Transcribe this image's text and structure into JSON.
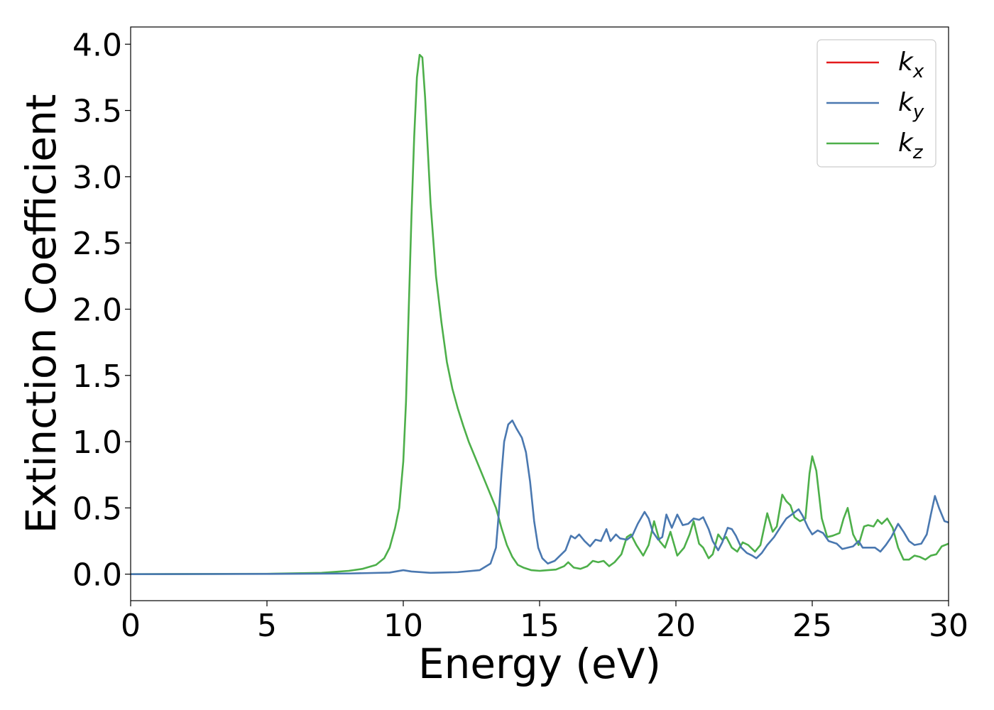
{
  "chart_data": {
    "type": "line",
    "title": "",
    "xlabel": "Energy (eV)",
    "ylabel": "Extinction Coefficient",
    "xlim": [
      0,
      30
    ],
    "ylim": [
      -0.2,
      4.13
    ],
    "xticks": [
      0,
      5,
      10,
      15,
      20,
      25,
      30
    ],
    "xtick_labels": [
      "0",
      "5",
      "10",
      "15",
      "20",
      "25",
      "30"
    ],
    "yticks": [
      0.0,
      0.5,
      1.0,
      1.5,
      2.0,
      2.5,
      3.0,
      3.5,
      4.0
    ],
    "ytick_labels": [
      "0.0",
      "0.5",
      "1.0",
      "1.5",
      "2.0",
      "2.5",
      "3.0",
      "3.5",
      "4.0"
    ],
    "grid": false,
    "legend_position": "top-right",
    "series": [
      {
        "name": "k",
        "subscript": "x",
        "color": "#e41a1c",
        "points": []
      },
      {
        "name": "k",
        "subscript": "y",
        "color": "#4a78b0",
        "points": [
          [
            0,
            0
          ],
          [
            5,
            0.002
          ],
          [
            8,
            0.005
          ],
          [
            9.5,
            0.012
          ],
          [
            10.0,
            0.03
          ],
          [
            10.3,
            0.02
          ],
          [
            11,
            0.01
          ],
          [
            12,
            0.015
          ],
          [
            12.8,
            0.03
          ],
          [
            13.2,
            0.08
          ],
          [
            13.4,
            0.2
          ],
          [
            13.5,
            0.45
          ],
          [
            13.6,
            0.75
          ],
          [
            13.7,
            1.0
          ],
          [
            13.85,
            1.13
          ],
          [
            14.0,
            1.16
          ],
          [
            14.15,
            1.1
          ],
          [
            14.35,
            1.03
          ],
          [
            14.5,
            0.92
          ],
          [
            14.65,
            0.7
          ],
          [
            14.8,
            0.4
          ],
          [
            14.95,
            0.2
          ],
          [
            15.1,
            0.12
          ],
          [
            15.3,
            0.08
          ],
          [
            15.55,
            0.1
          ],
          [
            15.8,
            0.15
          ],
          [
            15.95,
            0.18
          ],
          [
            16.15,
            0.29
          ],
          [
            16.3,
            0.27
          ],
          [
            16.45,
            0.3
          ],
          [
            16.65,
            0.25
          ],
          [
            16.85,
            0.21
          ],
          [
            17.05,
            0.26
          ],
          [
            17.25,
            0.25
          ],
          [
            17.45,
            0.34
          ],
          [
            17.6,
            0.25
          ],
          [
            17.8,
            0.3
          ],
          [
            17.95,
            0.27
          ],
          [
            18.2,
            0.26
          ],
          [
            18.4,
            0.29
          ],
          [
            18.6,
            0.38
          ],
          [
            18.85,
            0.47
          ],
          [
            19.0,
            0.42
          ],
          [
            19.15,
            0.32
          ],
          [
            19.35,
            0.26
          ],
          [
            19.5,
            0.28
          ],
          [
            19.65,
            0.45
          ],
          [
            19.85,
            0.35
          ],
          [
            20.05,
            0.45
          ],
          [
            20.25,
            0.37
          ],
          [
            20.45,
            0.38
          ],
          [
            20.65,
            0.42
          ],
          [
            20.85,
            0.41
          ],
          [
            21.0,
            0.43
          ],
          [
            21.2,
            0.34
          ],
          [
            21.35,
            0.25
          ],
          [
            21.55,
            0.18
          ],
          [
            21.7,
            0.24
          ],
          [
            21.9,
            0.35
          ],
          [
            22.05,
            0.34
          ],
          [
            22.2,
            0.29
          ],
          [
            22.4,
            0.2
          ],
          [
            22.6,
            0.16
          ],
          [
            22.8,
            0.14
          ],
          [
            22.95,
            0.12
          ],
          [
            23.15,
            0.16
          ],
          [
            23.35,
            0.22
          ],
          [
            23.6,
            0.28
          ],
          [
            23.85,
            0.36
          ],
          [
            24.05,
            0.42
          ],
          [
            24.25,
            0.45
          ],
          [
            24.5,
            0.49
          ],
          [
            24.65,
            0.44
          ],
          [
            24.85,
            0.35
          ],
          [
            25.0,
            0.3
          ],
          [
            25.2,
            0.33
          ],
          [
            25.4,
            0.31
          ],
          [
            25.6,
            0.25
          ],
          [
            25.9,
            0.23
          ],
          [
            26.1,
            0.19
          ],
          [
            26.3,
            0.2
          ],
          [
            26.5,
            0.21
          ],
          [
            26.7,
            0.25
          ],
          [
            26.85,
            0.2
          ],
          [
            27.05,
            0.2
          ],
          [
            27.3,
            0.2
          ],
          [
            27.5,
            0.17
          ],
          [
            27.7,
            0.22
          ],
          [
            27.9,
            0.28
          ],
          [
            28.15,
            0.38
          ],
          [
            28.35,
            0.32
          ],
          [
            28.55,
            0.25
          ],
          [
            28.75,
            0.22
          ],
          [
            29.0,
            0.23
          ],
          [
            29.2,
            0.3
          ],
          [
            29.35,
            0.45
          ],
          [
            29.5,
            0.59
          ],
          [
            29.65,
            0.5
          ],
          [
            29.85,
            0.4
          ],
          [
            30.0,
            0.39
          ]
        ]
      },
      {
        "name": "k",
        "subscript": "z",
        "color": "#4daf4a",
        "points": [
          [
            0,
            0
          ],
          [
            5,
            0.003
          ],
          [
            7,
            0.01
          ],
          [
            8,
            0.025
          ],
          [
            8.5,
            0.04
          ],
          [
            9.0,
            0.07
          ],
          [
            9.3,
            0.12
          ],
          [
            9.5,
            0.2
          ],
          [
            9.7,
            0.35
          ],
          [
            9.85,
            0.5
          ],
          [
            10.0,
            0.85
          ],
          [
            10.1,
            1.3
          ],
          [
            10.2,
            2.0
          ],
          [
            10.3,
            2.7
          ],
          [
            10.4,
            3.3
          ],
          [
            10.5,
            3.75
          ],
          [
            10.6,
            3.92
          ],
          [
            10.7,
            3.9
          ],
          [
            10.8,
            3.6
          ],
          [
            10.9,
            3.2
          ],
          [
            11.0,
            2.8
          ],
          [
            11.2,
            2.25
          ],
          [
            11.4,
            1.9
          ],
          [
            11.6,
            1.6
          ],
          [
            11.8,
            1.4
          ],
          [
            12.0,
            1.25
          ],
          [
            12.2,
            1.12
          ],
          [
            12.4,
            1.0
          ],
          [
            12.6,
            0.9
          ],
          [
            12.8,
            0.8
          ],
          [
            13.0,
            0.7
          ],
          [
            13.2,
            0.6
          ],
          [
            13.4,
            0.5
          ],
          [
            13.6,
            0.35
          ],
          [
            13.8,
            0.22
          ],
          [
            14.0,
            0.13
          ],
          [
            14.2,
            0.07
          ],
          [
            14.4,
            0.05
          ],
          [
            14.7,
            0.03
          ],
          [
            15.0,
            0.025
          ],
          [
            15.3,
            0.03
          ],
          [
            15.6,
            0.035
          ],
          [
            15.9,
            0.06
          ],
          [
            16.05,
            0.09
          ],
          [
            16.25,
            0.05
          ],
          [
            16.5,
            0.04
          ],
          [
            16.75,
            0.06
          ],
          [
            16.95,
            0.1
          ],
          [
            17.15,
            0.09
          ],
          [
            17.35,
            0.1
          ],
          [
            17.55,
            0.06
          ],
          [
            17.75,
            0.09
          ],
          [
            18.0,
            0.15
          ],
          [
            18.2,
            0.28
          ],
          [
            18.35,
            0.3
          ],
          [
            18.55,
            0.22
          ],
          [
            18.8,
            0.14
          ],
          [
            19.0,
            0.22
          ],
          [
            19.2,
            0.4
          ],
          [
            19.4,
            0.25
          ],
          [
            19.6,
            0.2
          ],
          [
            19.8,
            0.32
          ],
          [
            20.05,
            0.14
          ],
          [
            20.3,
            0.2
          ],
          [
            20.5,
            0.3
          ],
          [
            20.65,
            0.4
          ],
          [
            20.85,
            0.23
          ],
          [
            21.0,
            0.2
          ],
          [
            21.2,
            0.12
          ],
          [
            21.35,
            0.15
          ],
          [
            21.55,
            0.3
          ],
          [
            21.7,
            0.26
          ],
          [
            21.85,
            0.28
          ],
          [
            22.05,
            0.2
          ],
          [
            22.25,
            0.17
          ],
          [
            22.45,
            0.24
          ],
          [
            22.65,
            0.22
          ],
          [
            22.9,
            0.17
          ],
          [
            23.1,
            0.22
          ],
          [
            23.35,
            0.46
          ],
          [
            23.55,
            0.32
          ],
          [
            23.7,
            0.36
          ],
          [
            23.9,
            0.6
          ],
          [
            24.05,
            0.55
          ],
          [
            24.2,
            0.52
          ],
          [
            24.35,
            0.43
          ],
          [
            24.55,
            0.4
          ],
          [
            24.75,
            0.42
          ],
          [
            24.9,
            0.76
          ],
          [
            25.0,
            0.89
          ],
          [
            25.15,
            0.78
          ],
          [
            25.35,
            0.42
          ],
          [
            25.55,
            0.28
          ],
          [
            25.75,
            0.29
          ],
          [
            26.0,
            0.31
          ],
          [
            26.15,
            0.42
          ],
          [
            26.3,
            0.5
          ],
          [
            26.5,
            0.3
          ],
          [
            26.7,
            0.22
          ],
          [
            26.9,
            0.36
          ],
          [
            27.05,
            0.37
          ],
          [
            27.25,
            0.36
          ],
          [
            27.4,
            0.41
          ],
          [
            27.55,
            0.38
          ],
          [
            27.75,
            0.42
          ],
          [
            27.95,
            0.35
          ],
          [
            28.15,
            0.2
          ],
          [
            28.35,
            0.11
          ],
          [
            28.55,
            0.11
          ],
          [
            28.75,
            0.14
          ],
          [
            28.95,
            0.13
          ],
          [
            29.15,
            0.11
          ],
          [
            29.35,
            0.14
          ],
          [
            29.55,
            0.15
          ],
          [
            29.75,
            0.21
          ],
          [
            30.0,
            0.23
          ]
        ]
      }
    ]
  }
}
